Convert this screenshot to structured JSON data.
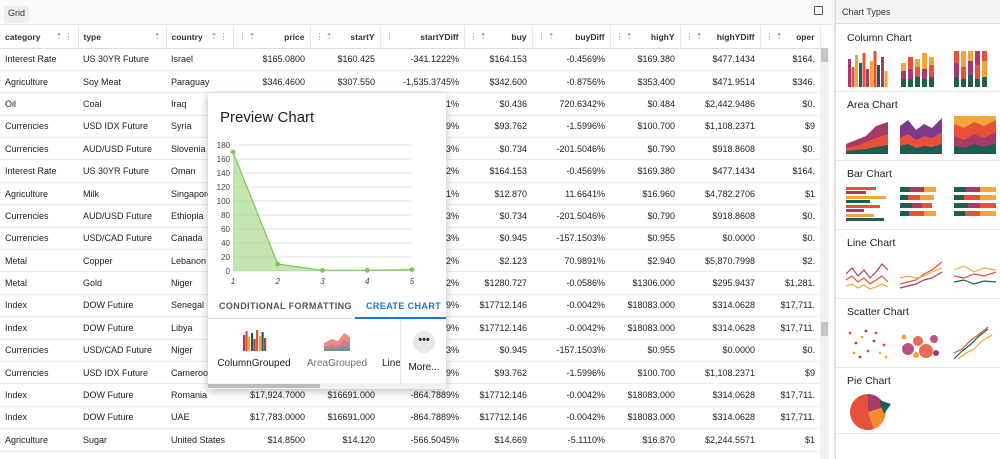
{
  "grid": {
    "tab_label": "Grid",
    "columns": [
      {
        "label": "category",
        "align": "left",
        "width": 78,
        "icons": "⇡ ⋮",
        "icons_pos": "after"
      },
      {
        "label": "type",
        "align": "left",
        "width": 88,
        "icons": "⇡",
        "icons_pos": "after"
      },
      {
        "label": "country",
        "align": "left",
        "width": 67,
        "icons": "⇡ ⋮",
        "icons_pos": "after"
      },
      {
        "label": "price",
        "align": "right",
        "width": 77,
        "icons": "⋮ ⇡",
        "icons_pos": "before"
      },
      {
        "label": "startY",
        "align": "right",
        "width": 70,
        "icons": "⋮ ⇡",
        "icons_pos": "before"
      },
      {
        "label": "startYDiff",
        "align": "right",
        "width": 84,
        "icons": "⋮",
        "icons_pos": "before"
      },
      {
        "label": "buy",
        "align": "right",
        "width": 68,
        "icons": "⋮ ⇡",
        "icons_pos": "before"
      },
      {
        "label": "buyDiff",
        "align": "right",
        "width": 78,
        "icons": "⋮ ⇡",
        "icons_pos": "before"
      },
      {
        "label": "highY",
        "align": "right",
        "width": 70,
        "icons": "⋮ ⇡",
        "icons_pos": "before"
      },
      {
        "label": "highYDiff",
        "align": "right",
        "width": 80,
        "icons": "⋮ ⇡",
        "icons_pos": "before"
      },
      {
        "label": "oper",
        "align": "right",
        "width": 60,
        "icons": "⋮ ⇡",
        "icons_pos": "before"
      }
    ],
    "rows": [
      [
        "Interest Rate",
        "US 30YR Future",
        "Israel",
        "$165.0800",
        "$160.425",
        "-341.1222%",
        "$164.153",
        "-0.4569%",
        "$169.380",
        "$477.1434",
        "$164."
      ],
      [
        "Agriculture",
        "Soy Meat",
        "Paraguay",
        "$346.4600",
        "$307.550",
        "-1,535.3745%",
        "$342.600",
        "-0.8756%",
        "$353.400",
        "$471.9514",
        "$346."
      ],
      [
        "Oil",
        "Coal",
        "Iraq",
        "",
        "",
        "1%",
        "$0.436",
        "720.6342%",
        "$0.484",
        "$2,442.9486",
        "$0."
      ],
      [
        "Currencies",
        "USD IDX Future",
        "Syria",
        "",
        "",
        "9%",
        "$93.762",
        "-1.5996%",
        "$100.700",
        "$1,108.2371",
        "$9"
      ],
      [
        "Currencies",
        "AUD/USD Future",
        "Slovenia",
        "",
        "",
        "3%",
        "$0.734",
        "-201.5046%",
        "$0.790",
        "$918.8608",
        "$0."
      ],
      [
        "Interest Rate",
        "US 30YR Future",
        "Oman",
        "",
        "",
        "2%",
        "$164.153",
        "-0.4569%",
        "$169.380",
        "$477.1434",
        "$164."
      ],
      [
        "Agriculture",
        "Milk",
        "Singapore",
        "",
        "",
        "1%",
        "$12.870",
        "11.6641%",
        "$16.960",
        "$4,782.2706",
        "$1"
      ],
      [
        "Currencies",
        "AUD/USD Future",
        "Ethiopia",
        "",
        "",
        "3%",
        "$0.734",
        "-201.5046%",
        "$0.790",
        "$918.8608",
        "$0."
      ],
      [
        "Currencies",
        "USD/CAD Future",
        "Canada",
        "",
        "",
        "3%",
        "$0.945",
        "-157.1503%",
        "$0.955",
        "$0.0000",
        "$0."
      ],
      [
        "Metal",
        "Copper",
        "Lebanon",
        "",
        "",
        "2%",
        "$2.123",
        "70.9891%",
        "$2.940",
        "$5,870.7998",
        "$2."
      ],
      [
        "Metal",
        "Gold",
        "Niger",
        "",
        "",
        "2%",
        "$1280.727",
        "-0.0586%",
        "$1306.000",
        "$295.9437",
        "$1,281."
      ],
      [
        "Index",
        "DOW Future",
        "Senegal",
        "",
        "",
        "9%",
        "$17712.146",
        "-0.0042%",
        "$18083.000",
        "$314.0628",
        "$17,711."
      ],
      [
        "Index",
        "DOW Future",
        "Libya",
        "",
        "",
        "9%",
        "$17712.146",
        "-0.0042%",
        "$18083.000",
        "$314.0628",
        "$17,711."
      ],
      [
        "Currencies",
        "USD/CAD Future",
        "Niger",
        "",
        "",
        "3%",
        "$0.945",
        "-157.1503%",
        "$0.955",
        "$0.0000",
        "$0."
      ],
      [
        "Currencies",
        "USD IDX Future",
        "Cameroon",
        "",
        "",
        "9%",
        "$93.762",
        "-1.5996%",
        "$100.700",
        "$1,108.2371",
        "$9"
      ],
      [
        "Index",
        "DOW Future",
        "Romania",
        "$17,924.7000",
        "$16691.000",
        "-864.7889%",
        "$17712.146",
        "-0.0042%",
        "$18083.000",
        "$314.0628",
        "$17,711."
      ],
      [
        "Index",
        "DOW Future",
        "UAE",
        "$17,783.0000",
        "$16691.000",
        "-864.7889%",
        "$17712.146",
        "-0.0042%",
        "$18083.000",
        "$314.0628",
        "$17,711."
      ],
      [
        "Agriculture",
        "Sugar",
        "United States",
        "$14.8500",
        "$14.120",
        "-566.5045%",
        "$14.669",
        "-5.1110%",
        "$16.870",
        "$2,244.5571",
        "$1"
      ]
    ]
  },
  "preview": {
    "title": "Preview Chart",
    "tabs": [
      "CONDITIONAL FORMATTING",
      "CREATE CHART"
    ],
    "active_tab": "CREATE CHART",
    "options": [
      "ColumnGrouped",
      "AreaGrouped",
      "Line"
    ],
    "more_label": "More...",
    "more_icon": "•••"
  },
  "chart_data": {
    "type": "area",
    "x": [
      1,
      2,
      3,
      4,
      5
    ],
    "values": [
      170,
      10,
      1,
      1,
      2
    ],
    "ylim": [
      0,
      180
    ],
    "yticks": [
      0,
      20,
      40,
      60,
      80,
      100,
      120,
      140,
      160,
      180
    ],
    "xticks": [
      "1",
      "2",
      "3",
      "4",
      "5"
    ],
    "grid": true,
    "color": "#8fd16a"
  },
  "panel": {
    "title": "Chart Types",
    "sections": [
      "Column Chart",
      "Area Chart",
      "Bar Chart",
      "Line Chart",
      "Scatter Chart",
      "Pie Chart"
    ]
  },
  "colors": {
    "accent": "#1976d2",
    "palette": [
      "#a83a68",
      "#e8503a",
      "#f4a53a",
      "#1e5f52",
      "#7b3a8c",
      "#f28a2f"
    ]
  }
}
